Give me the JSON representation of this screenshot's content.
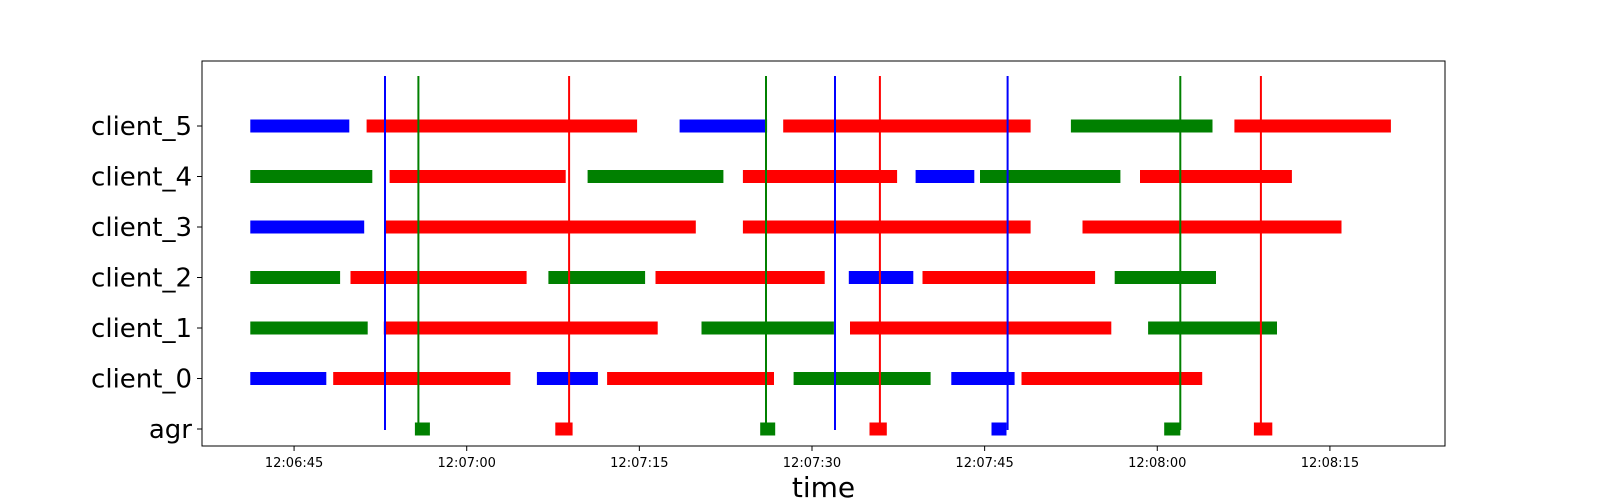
{
  "chart_data": {
    "type": "timeline",
    "title": "",
    "xlabel": "time",
    "ylabel": "",
    "xlim": [
      "12:06:37",
      "12:08:25"
    ],
    "rows": [
      "agr",
      "client_0",
      "client_1",
      "client_2",
      "client_3",
      "client_4",
      "client_5"
    ],
    "x_ticks": [
      "12:06:45",
      "12:07:00",
      "12:07:15",
      "12:07:30",
      "12:07:45",
      "12:08:00",
      "12:08:15"
    ],
    "colors": {
      "blue": "#0000ff",
      "green": "#008000",
      "red": "#ff0000"
    },
    "segments": [
      {
        "row": "client_5",
        "start": "12:06:41.2",
        "end": "12:06:49.8",
        "color": "blue"
      },
      {
        "row": "client_5",
        "start": "12:06:51.3",
        "end": "12:07:14.8",
        "color": "red"
      },
      {
        "row": "client_5",
        "start": "12:07:18.5",
        "end": "12:07:26.1",
        "color": "blue"
      },
      {
        "row": "client_5",
        "start": "12:07:27.5",
        "end": "12:07:49.0",
        "color": "red"
      },
      {
        "row": "client_5",
        "start": "12:07:52.5",
        "end": "12:08:04.8",
        "color": "green"
      },
      {
        "row": "client_5",
        "start": "12:08:06.7",
        "end": "12:08:20.3",
        "color": "red"
      },
      {
        "row": "client_4",
        "start": "12:06:41.2",
        "end": "12:06:51.8",
        "color": "green"
      },
      {
        "row": "client_4",
        "start": "12:06:53.3",
        "end": "12:07:08.6",
        "color": "red"
      },
      {
        "row": "client_4",
        "start": "12:07:10.5",
        "end": "12:07:22.3",
        "color": "green"
      },
      {
        "row": "client_4",
        "start": "12:07:24.0",
        "end": "12:07:37.4",
        "color": "red"
      },
      {
        "row": "client_4",
        "start": "12:07:39.0",
        "end": "12:07:44.1",
        "color": "blue"
      },
      {
        "row": "client_4",
        "start": "12:07:44.6",
        "end": "12:07:56.8",
        "color": "green"
      },
      {
        "row": "client_4",
        "start": "12:07:58.5",
        "end": "12:08:11.7",
        "color": "red"
      },
      {
        "row": "client_3",
        "start": "12:06:41.2",
        "end": "12:06:51.1",
        "color": "blue"
      },
      {
        "row": "client_3",
        "start": "12:06:52.9",
        "end": "12:07:19.9",
        "color": "red"
      },
      {
        "row": "client_3",
        "start": "12:07:24.0",
        "end": "12:07:49.0",
        "color": "red"
      },
      {
        "row": "client_3",
        "start": "12:07:53.5",
        "end": "12:08:16.0",
        "color": "red"
      },
      {
        "row": "client_2",
        "start": "12:06:41.2",
        "end": "12:06:49.0",
        "color": "green"
      },
      {
        "row": "client_2",
        "start": "12:06:49.9",
        "end": "12:07:05.2",
        "color": "red"
      },
      {
        "row": "client_2",
        "start": "12:07:07.1",
        "end": "12:07:15.5",
        "color": "green"
      },
      {
        "row": "client_2",
        "start": "12:07:16.4",
        "end": "12:07:31.1",
        "color": "red"
      },
      {
        "row": "client_2",
        "start": "12:07:33.2",
        "end": "12:07:38.8",
        "color": "blue"
      },
      {
        "row": "client_2",
        "start": "12:07:39.6",
        "end": "12:07:54.6",
        "color": "red"
      },
      {
        "row": "client_2",
        "start": "12:07:56.3",
        "end": "12:08:05.1",
        "color": "green"
      },
      {
        "row": "client_1",
        "start": "12:06:41.2",
        "end": "12:06:51.4",
        "color": "green"
      },
      {
        "row": "client_1",
        "start": "12:06:52.8",
        "end": "12:07:16.6",
        "color": "red"
      },
      {
        "row": "client_1",
        "start": "12:07:20.4",
        "end": "12:07:31.9",
        "color": "green"
      },
      {
        "row": "client_1",
        "start": "12:07:33.3",
        "end": "12:07:56.0",
        "color": "red"
      },
      {
        "row": "client_1",
        "start": "12:07:59.2",
        "end": "12:08:10.4",
        "color": "green"
      },
      {
        "row": "client_0",
        "start": "12:06:41.2",
        "end": "12:06:47.8",
        "color": "blue"
      },
      {
        "row": "client_0",
        "start": "12:06:48.4",
        "end": "12:07:03.8",
        "color": "red"
      },
      {
        "row": "client_0",
        "start": "12:07:06.1",
        "end": "12:07:11.4",
        "color": "blue"
      },
      {
        "row": "client_0",
        "start": "12:07:12.2",
        "end": "12:07:26.7",
        "color": "red"
      },
      {
        "row": "client_0",
        "start": "12:07:28.4",
        "end": "12:07:40.3",
        "color": "green"
      },
      {
        "row": "client_0",
        "start": "12:07:42.1",
        "end": "12:07:47.6",
        "color": "blue"
      },
      {
        "row": "client_0",
        "start": "12:07:48.2",
        "end": "12:08:03.9",
        "color": "red"
      },
      {
        "row": "agr",
        "start": "12:06:55.5",
        "end": "12:06:56.8",
        "color": "green"
      },
      {
        "row": "agr",
        "start": "12:07:07.7",
        "end": "12:07:09.2",
        "color": "red"
      },
      {
        "row": "agr",
        "start": "12:07:25.5",
        "end": "12:07:26.8",
        "color": "green"
      },
      {
        "row": "agr",
        "start": "12:07:35.0",
        "end": "12:07:36.5",
        "color": "red"
      },
      {
        "row": "agr",
        "start": "12:07:45.6",
        "end": "12:07:46.9",
        "color": "blue"
      },
      {
        "row": "agr",
        "start": "12:08:00.6",
        "end": "12:08:02.0",
        "color": "green"
      },
      {
        "row": "agr",
        "start": "12:08:08.4",
        "end": "12:08:10.0",
        "color": "red"
      }
    ],
    "vlines": [
      {
        "time": "12:06:52.9",
        "color": "blue"
      },
      {
        "time": "12:06:55.8",
        "color": "green"
      },
      {
        "time": "12:07:08.9",
        "color": "red"
      },
      {
        "time": "12:07:26.0",
        "color": "green"
      },
      {
        "time": "12:07:32.0",
        "color": "blue"
      },
      {
        "time": "12:07:35.9",
        "color": "red"
      },
      {
        "time": "12:07:47.0",
        "color": "blue"
      },
      {
        "time": "12:08:02.0",
        "color": "green"
      },
      {
        "time": "12:08:09.0",
        "color": "red"
      }
    ]
  }
}
